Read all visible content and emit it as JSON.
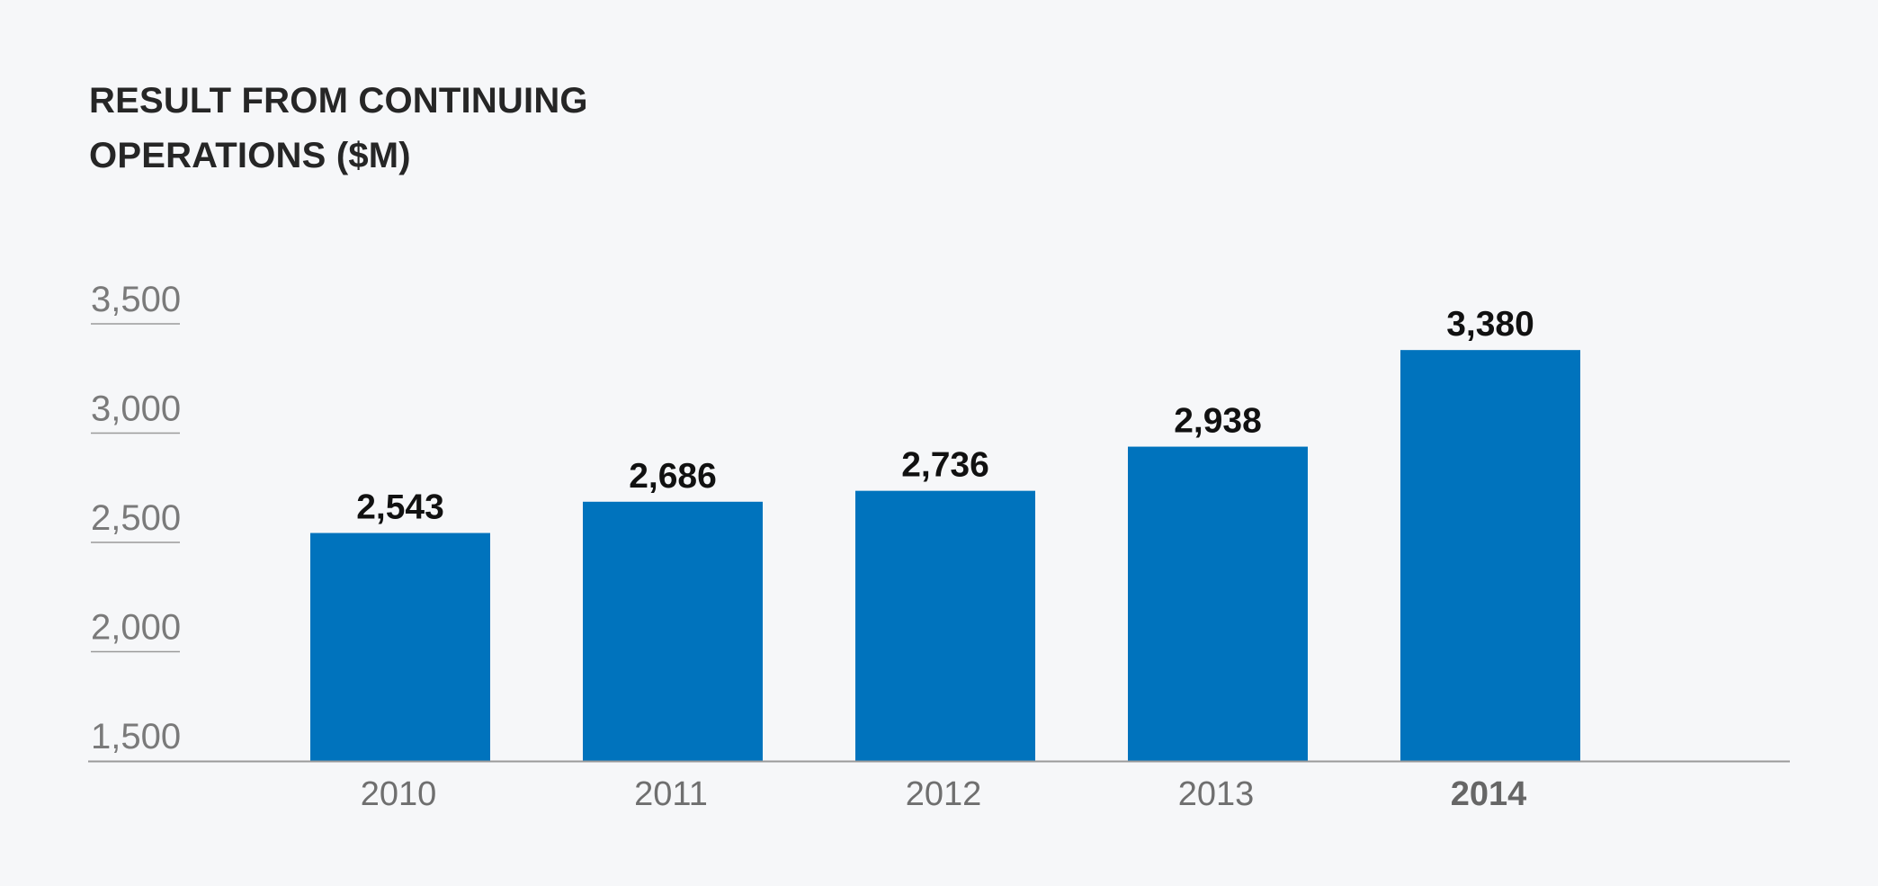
{
  "chart_data": {
    "type": "bar",
    "title": [
      "RESULT FROM CONTINUING",
      "OPERATIONS ($M)"
    ],
    "xlabel": "",
    "ylabel": "",
    "categories": [
      "2010",
      "2011",
      "2012",
      "2013",
      "2014"
    ],
    "values": [
      2543,
      2686,
      2736,
      2938,
      3380
    ],
    "value_labels": [
      "2,543",
      "2,686",
      "2,736",
      "2,938",
      "3,380"
    ],
    "highlight_category": "2014",
    "ylim": [
      1500,
      3500
    ],
    "yticks": [
      1500,
      2000,
      2500,
      3000,
      3500
    ],
    "ytick_labels": [
      "1,500",
      "2,000",
      "2,500",
      "3,000",
      "3,500"
    ],
    "grid": false,
    "legend": "none",
    "colors": {
      "bar": "#0073bd",
      "background": "#f6f7f9",
      "axis": "#9a9a9a"
    }
  }
}
